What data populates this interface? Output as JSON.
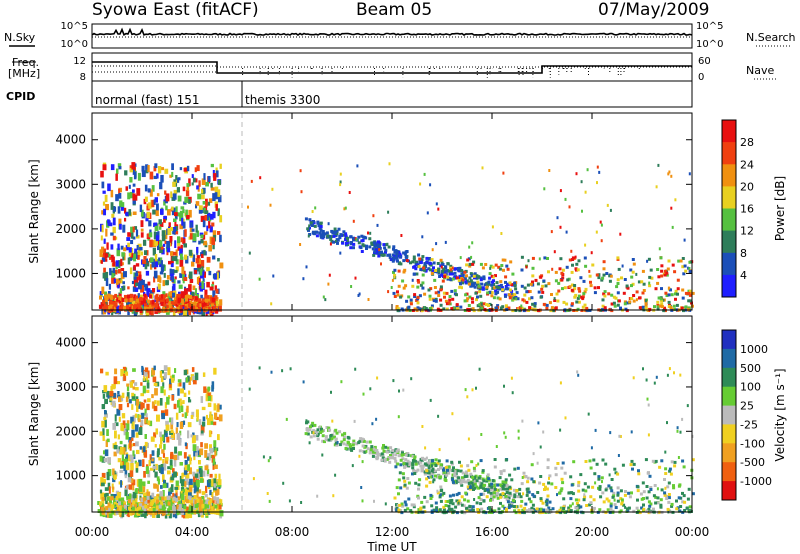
{
  "header": {
    "left": "Syowa East (fitACF)",
    "center": "Beam 05",
    "right": "07/May/2009"
  },
  "side": {
    "nsky": "N.Sky",
    "nsearch": "N.Search",
    "freq": "Freq.",
    "mhz": "[MHz]",
    "nave": "Nave",
    "cpid": "CPID",
    "nsky_ticks": [
      "10^5",
      "10^0"
    ],
    "nsearch_ticks": [
      "10^5",
      "10^0"
    ],
    "freq_ticks": [
      "12",
      "8"
    ],
    "nave_ticks": [
      "60",
      "0"
    ]
  },
  "cpid_labels": [
    {
      "text": "normal (fast) 151",
      "start_hour": 0
    },
    {
      "text": "themis 3300",
      "start_hour": 6
    }
  ],
  "chart_data": [
    {
      "type": "heatmap",
      "title": "Power",
      "xlabel": "",
      "ylabel": "Slant Range [km]",
      "xlim": [
        0,
        24
      ],
      "ylim": [
        180,
        4600
      ],
      "yticks": [
        "1000",
        "2000",
        "3000",
        "4000"
      ],
      "colorbar_label": "Power [dB]",
      "colorbar_ticks": [
        "4",
        "8",
        "12",
        "16",
        "20",
        "24",
        "28"
      ],
      "colorbar_colors": [
        "#1f1fff",
        "#1b4fb8",
        "#2e7d5a",
        "#55c040",
        "#e8d020",
        "#f09010",
        "#f04010",
        "#e81010"
      ],
      "regions": [
        {
          "t": [
            0.3,
            5.0
          ],
          "r": [
            180,
            3600
          ],
          "note": "dense echoes before 05 UT"
        },
        {
          "t": [
            8.5,
            13.0
          ],
          "r": [
            1700,
            2300
          ],
          "note": "blue band"
        },
        {
          "t": [
            12.0,
            24.0
          ],
          "r": [
            180,
            700
          ],
          "note": "low range echoes"
        },
        {
          "t": [
            20.0,
            22.0
          ],
          "r": [
            800,
            1300
          ]
        }
      ]
    },
    {
      "type": "heatmap",
      "title": "Velocity",
      "xlabel": "Time UT",
      "ylabel": "Slant Range [km]",
      "xlim": [
        0,
        24
      ],
      "ylim": [
        180,
        4600
      ],
      "xticks": [
        "00:00",
        "04:00",
        "08:00",
        "12:00",
        "16:00",
        "20:00",
        "00:00"
      ],
      "yticks": [
        "1000",
        "2000",
        "3000",
        "4000"
      ],
      "colorbar_label": "Velocity [m s⁻¹]",
      "colorbar_ticks": [
        "1000",
        "500",
        "100",
        "25",
        "-25",
        "-100",
        "-500",
        "-1000"
      ],
      "colorbar_colors": [
        "#2030c0",
        "#1f6aa5",
        "#2e8b57",
        "#66cc33",
        "#bbbbbb",
        "#f0d020",
        "#f0a020",
        "#f06010",
        "#e01010"
      ],
      "regions": [
        {
          "t": [
            0.3,
            5.0
          ],
          "r": [
            180,
            3600
          ],
          "note": "orange/yellow/green mix"
        },
        {
          "t": [
            11.0,
            13.0
          ],
          "r": [
            1700,
            2100
          ],
          "note": "gray band"
        },
        {
          "t": [
            13.0,
            22.0
          ],
          "r": [
            180,
            1600
          ],
          "note": "green echoes"
        }
      ]
    },
    {
      "type": "line",
      "title": "N.Sky / N.Search",
      "series": [
        {
          "values": [
            0.9
          ]
        },
        {
          "values": [
            0.85
          ]
        }
      ]
    },
    {
      "type": "line",
      "title": "Freq. / Nave",
      "segments_hours": [
        0,
        5.0,
        18.0,
        24
      ],
      "freq_step_levels": [
        0.25,
        0.8,
        0.45
      ]
    }
  ]
}
